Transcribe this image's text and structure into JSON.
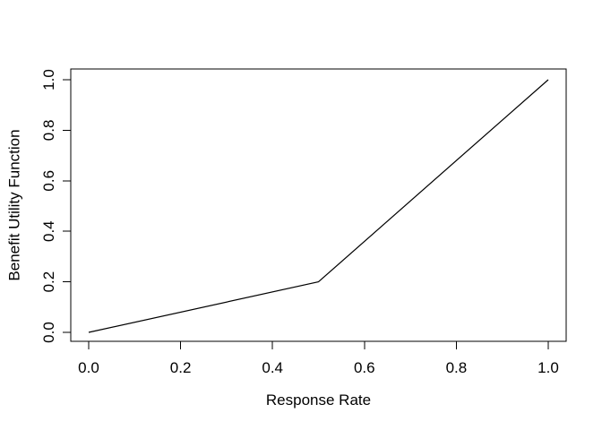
{
  "chart_data": {
    "type": "line",
    "title": "",
    "xlabel": "Response Rate",
    "ylabel": "Benefit Utility Function",
    "series": [
      {
        "name": "benefit-utility-function",
        "x": [
          0.0,
          0.5,
          1.0
        ],
        "y": [
          0.0,
          0.2,
          1.0
        ]
      }
    ],
    "xlim": [
      0.0,
      1.0
    ],
    "ylim": [
      0.0,
      1.0
    ],
    "x_ticks": [
      0.0,
      0.2,
      0.4,
      0.6,
      0.8,
      1.0
    ],
    "y_ticks": [
      0.0,
      0.2,
      0.4,
      0.6,
      0.8,
      1.0
    ],
    "x_tick_labels": [
      "0.0",
      "0.2",
      "0.4",
      "0.6",
      "0.8",
      "1.0"
    ],
    "y_tick_labels": [
      "0.0",
      "0.2",
      "0.4",
      "0.6",
      "0.8",
      "1.0"
    ],
    "grid": false,
    "legend": null,
    "colors": {
      "line": "#000000",
      "frame": "#000000",
      "text": "#000000",
      "background": "#ffffff"
    }
  }
}
